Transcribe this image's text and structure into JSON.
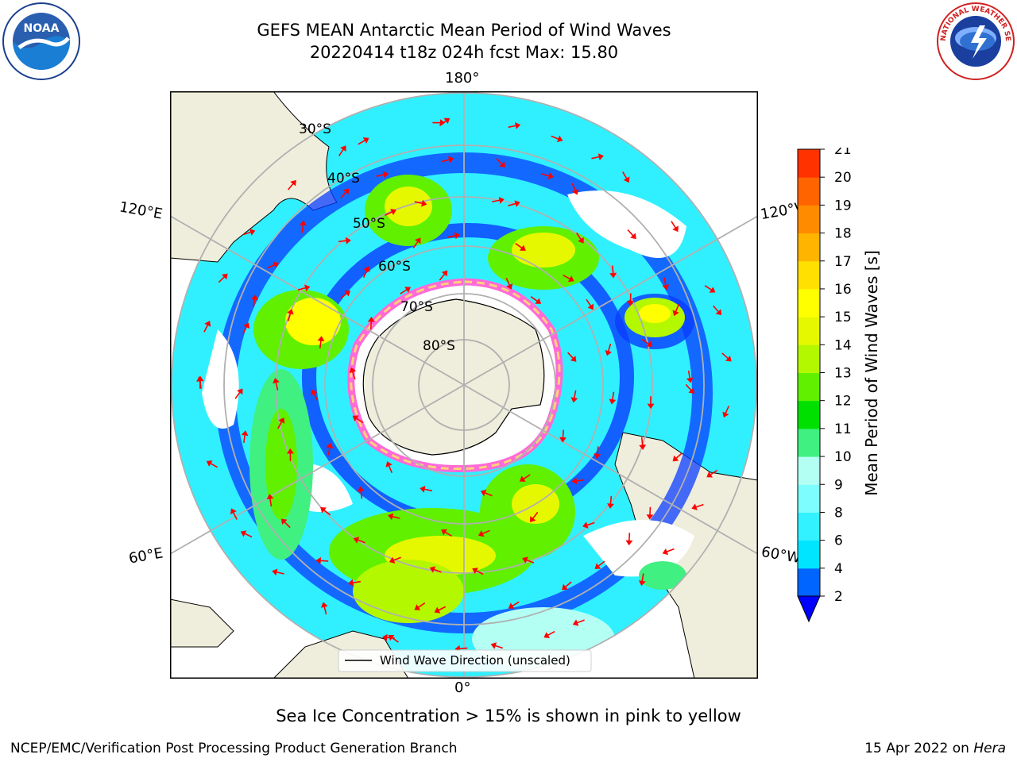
{
  "title": {
    "line1": "GEFS MEAN Antarctic Mean Period of Wind Waves",
    "line2": "20220414 t18z 024h fcst   Max: 15.80"
  },
  "map": {
    "projection": "south polar stereographic",
    "lon_labels": {
      "top": "180°",
      "bottom": "0°",
      "upper_left": "120°E",
      "lower_left": "60°E",
      "upper_right": "120°W",
      "lower_right": "60°W"
    },
    "lat_labels": [
      "30°S",
      "40°S",
      "50°S",
      "60°S",
      "70°S",
      "80°S"
    ],
    "legend_label": "Wind Wave Direction (unscaled)",
    "arrow_color": "#ff0000",
    "land_color": "#efeedc",
    "grid_color": "#b0b0b0",
    "sea_ice_colors": [
      "#ff69d8",
      "#ffd27a"
    ]
  },
  "colorbar": {
    "label": "Mean Period of Wind Waves [s]",
    "ticks": [
      "2",
      "4",
      "6",
      "8",
      "9",
      "10",
      "11",
      "12",
      "13",
      "14",
      "15",
      "16",
      "17",
      "18",
      "19",
      "20",
      "21"
    ],
    "colors": [
      "#0064ff",
      "#00e5ff",
      "#32f2ff",
      "#7dfdfd",
      "#b4fff4",
      "#40f080",
      "#00e000",
      "#60f000",
      "#b4f800",
      "#e6f800",
      "#ffff00",
      "#ffe000",
      "#ffb400",
      "#ff8c00",
      "#ff6400",
      "#ff3200",
      "#ff0000"
    ],
    "under_color": "#0000ff"
  },
  "footnote": "Sea Ice Concentration > 15% is shown in pink to yellow",
  "credit": "NCEP/EMC/Verification Post Processing Product Generation Branch",
  "stamp": {
    "date": "15 Apr 2022 on ",
    "machine": "Hera"
  },
  "logos": {
    "left": "NOAA",
    "right": "NATIONAL WEATHER SERVICE"
  }
}
